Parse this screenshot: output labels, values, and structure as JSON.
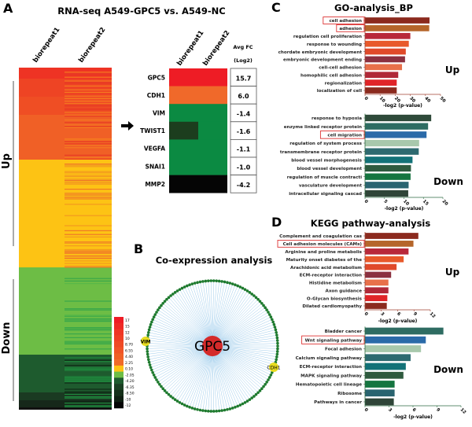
{
  "panels": {
    "A": {
      "letter": "A",
      "title": "RNA-seq A549-GPC5 vs. A549-NC"
    },
    "B": {
      "letter": "B",
      "title": "Co-expression analysis"
    },
    "C": {
      "letter": "C",
      "title": "GO-analysis_BP"
    },
    "D": {
      "letter": "D",
      "title": "KEGG pathway-analysis"
    }
  },
  "chart_data": [
    {
      "type": "heatmap",
      "panel": "A",
      "columns": [
        "biorepeat1",
        "biorepeat2"
      ],
      "groups": [
        "Up",
        "Down"
      ],
      "colorbar": {
        "ticks": [
          "17",
          "15",
          "12",
          "10",
          "8.70",
          "6.55",
          "4.40",
          "2.25",
          "0.10",
          "-2.05",
          "-4.20",
          "-6.35",
          "-8.50",
          "-10",
          "-12"
        ],
        "colors": [
          "#ee1c25",
          "#ee2a25",
          "#ef3625",
          "#ef4025",
          "#ef4a25",
          "#f05426",
          "#f06026",
          "#f06a28",
          "#fdc314",
          "#6dbd45",
          "#1e5b2e",
          "#1a3f22",
          "#15301a",
          "#0f1f12",
          "#050505"
        ]
      }
    },
    {
      "type": "table",
      "panel": "A",
      "columns": [
        "biorepeat1",
        "biorepeat2"
      ],
      "fc_header": [
        "Avg FC",
        "(Log2)"
      ],
      "rows": [
        {
          "gene": "GPC5",
          "fc": "15.7",
          "colors": [
            "#ee1c25",
            "#ee1c25"
          ]
        },
        {
          "gene": "CDH1",
          "fc": "6.0",
          "colors": [
            "#f0692a",
            "#f0692a"
          ]
        },
        {
          "gene": "VIM",
          "fc": "-1.4",
          "colors": [
            "#0b8a42",
            "#0b8a42"
          ]
        },
        {
          "gene": "TWIST1",
          "fc": "-1.6",
          "colors": [
            "#1c3d1e",
            "#0b8a42"
          ]
        },
        {
          "gene": "VEGFA",
          "fc": "-1.1",
          "colors": [
            "#0b8a42",
            "#0b8a42"
          ]
        },
        {
          "gene": "SNAI1",
          "fc": "-1.0",
          "colors": [
            "#0b8a42",
            "#0b8a42"
          ]
        },
        {
          "gene": "MMP2",
          "fc": "-4.2",
          "colors": [
            "#050505",
            "#050505"
          ]
        }
      ]
    },
    {
      "type": "network",
      "panel": "B",
      "center": "GPC5",
      "labeled_nodes": [
        "VIM",
        "CDH1"
      ],
      "colors": {
        "center": "#d42a2a",
        "node": "#1e7a2e",
        "highlight": "#e8dc20",
        "edge": "#9ccbeb"
      }
    },
    {
      "type": "bar",
      "orientation": "horizontal",
      "panel": "C",
      "group": "Up",
      "xlabel": "-log2 (p-value)",
      "xlim": [
        0,
        50
      ],
      "ticks": [
        0,
        10,
        20,
        30,
        40,
        50
      ],
      "highlighted": [
        "cell adhesion",
        "adhesion"
      ],
      "categories": [
        "cell adhesion",
        "adhesion",
        "regulation cell proliferation",
        "response to wounding",
        "chordate embryonic development",
        "embryonic development ending",
        "cell-cell adhesion",
        "homophilic cell adhesion",
        "regionalization",
        "localization of cell"
      ],
      "values": [
        42.7,
        42.5,
        30,
        29,
        27,
        26.5,
        24.5,
        22,
        21,
        21
      ],
      "colors": [
        "#8b2a1e",
        "#b5652a",
        "#b8283a",
        "#e8592a",
        "#e04a2a",
        "#8b3040",
        "#e8704a",
        "#b02838",
        "#e02428",
        "#8b2a1e"
      ]
    },
    {
      "type": "bar",
      "orientation": "horizontal",
      "panel": "C",
      "group": "Down",
      "xlabel": "-log2 (p-value)",
      "xlim": [
        0,
        20
      ],
      "ticks": [
        0,
        5,
        10,
        15,
        20
      ],
      "highlighted": [
        "cell migration"
      ],
      "categories": [
        "response to hypoxia",
        "enzyme linked receptor protein",
        "cell migration",
        "regulation of system process",
        "transmembrane receptor protein",
        "blood vessel morphogenesis",
        "blood vessel development",
        "regulation of muscle contracti",
        "vasculature development",
        "intracellular signaling cascad"
      ],
      "values": [
        17,
        16.2,
        15.8,
        13.9,
        13.8,
        12.2,
        11.8,
        11.7,
        11.2,
        11.1
      ],
      "colors": [
        "#2f4a3a",
        "#2e6c62",
        "#2a6aa8",
        "#a8c8ac",
        "#2e6a70",
        "#137278",
        "#2e5a3e",
        "#157540",
        "#2a6470",
        "#2f4538"
      ]
    },
    {
      "type": "bar",
      "orientation": "horizontal",
      "panel": "D",
      "group": "Up",
      "xlabel": "-log2 (p-value)",
      "xlim": [
        0,
        12
      ],
      "ticks": [
        0,
        3,
        6,
        9,
        12
      ],
      "highlighted": [
        "Cell adhesion molecules (CAMs)"
      ],
      "categories": [
        "Complement and coagulation cas",
        "Cell adhesion molecules (CAMs)",
        "Arginine and proline metabolis",
        "Maturity onset diabetes of the",
        "Arachidonic acid metabolism",
        "ECM-receptor interaction",
        "Histidine metabolism",
        "Axon guidance",
        "O-Glycan biosynthesis",
        "Dilated cardiomyopathy"
      ],
      "values": [
        9.8,
        8.9,
        8.0,
        7.1,
        5.8,
        4.8,
        4.3,
        4.3,
        4.1,
        4.0
      ],
      "colors": [
        "#8b2a1e",
        "#b5652a",
        "#b8283a",
        "#e8592a",
        "#e04a2a",
        "#8b3040",
        "#e8704a",
        "#b02838",
        "#e02428",
        "#8b2a1e"
      ]
    },
    {
      "type": "bar",
      "orientation": "horizontal",
      "panel": "D",
      "group": "Down",
      "xlabel": "-log2 (p-value)",
      "xlim": [
        0,
        12
      ],
      "ticks": [
        0,
        3,
        6,
        9,
        12
      ],
      "highlighted": [
        "Wnt signaling pathway"
      ],
      "categories": [
        "Bladder cancer",
        "Wnt signaling pathway",
        "Focal adhesion",
        "Calcium signaling pathway",
        "ECM-receptor interaction",
        "MAPK signaling pathway",
        "Hematopoietic cell lineage",
        "Ribosome",
        "Pathways in cancer"
      ],
      "values": [
        9.8,
        7.6,
        7.0,
        5.7,
        5.1,
        4.8,
        3.7,
        3.7,
        3.6
      ],
      "colors": [
        "#2e6c62",
        "#2a6aa8",
        "#a8c8ac",
        "#2e6a70",
        "#137278",
        "#2e5a3e",
        "#157540",
        "#2a6470",
        "#2f4538"
      ]
    }
  ]
}
